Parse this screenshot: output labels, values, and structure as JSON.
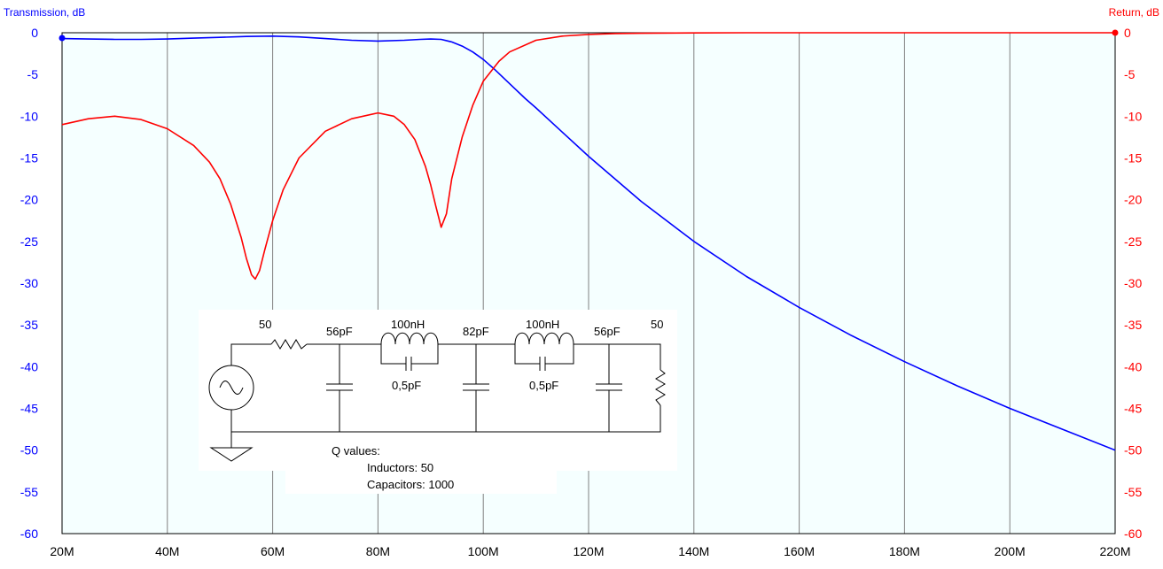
{
  "chart_data": {
    "type": "line",
    "left_axis_title": "Transmission, dB",
    "right_axis_title": "Return, dB",
    "xlim": [
      20,
      220
    ],
    "ylim": [
      -60,
      0
    ],
    "x_tick_values": [
      20,
      40,
      60,
      80,
      100,
      120,
      140,
      160,
      180,
      200,
      220
    ],
    "x_tick_labels": [
      "20M",
      "40M",
      "60M",
      "80M",
      "100M",
      "120M",
      "140M",
      "160M",
      "180M",
      "200M",
      "220M"
    ],
    "y_tick_values": [
      0,
      -5,
      -10,
      -15,
      -20,
      -25,
      -30,
      -35,
      -40,
      -45,
      -50,
      -55,
      -60
    ],
    "y_tick_labels": [
      "0",
      "-5",
      "-10",
      "-15",
      "-20",
      "-25",
      "-30",
      "-35",
      "-40",
      "-45",
      "-50",
      "-55",
      "-60"
    ],
    "grid": true,
    "series": [
      {
        "axis": "left",
        "color": "#0000ff",
        "x": [
          20,
          25,
          30,
          35,
          40,
          45,
          50,
          55,
          60,
          65,
          70,
          75,
          80,
          85,
          88,
          90,
          92,
          94,
          96,
          98,
          100,
          102,
          104,
          106,
          108,
          110,
          115,
          120,
          130,
          140,
          150,
          160,
          170,
          180,
          190,
          200,
          210,
          220
        ],
        "y": [
          -0.7,
          -0.75,
          -0.8,
          -0.8,
          -0.75,
          -0.65,
          -0.55,
          -0.45,
          -0.4,
          -0.5,
          -0.7,
          -0.9,
          -1.0,
          -0.9,
          -0.8,
          -0.75,
          -0.8,
          -1.1,
          -1.6,
          -2.3,
          -3.2,
          -4.3,
          -5.5,
          -6.7,
          -7.9,
          -9.0,
          -11.9,
          -14.8,
          -20.2,
          -25.0,
          -29.2,
          -32.9,
          -36.3,
          -39.4,
          -42.3,
          -45.0,
          -47.5,
          -50.0
        ]
      },
      {
        "axis": "right",
        "color": "#ff0000",
        "x": [
          20,
          25,
          30,
          35,
          40,
          45,
          48,
          50,
          52,
          54,
          55,
          56,
          56.7,
          57.5,
          58.5,
          60,
          62,
          65,
          70,
          75,
          80,
          83,
          85,
          87,
          89,
          90,
          91,
          92,
          93,
          94,
          96,
          98,
          100,
          103,
          105,
          110,
          115,
          120,
          125,
          130,
          140,
          150,
          220
        ],
        "y": [
          -11,
          -10.3,
          -10,
          -10.4,
          -11.5,
          -13.5,
          -15.5,
          -17.5,
          -20.5,
          -24.5,
          -27,
          -29,
          -29.5,
          -28.5,
          -26,
          -22.5,
          -18.8,
          -15,
          -11.8,
          -10.3,
          -9.6,
          -10,
          -11,
          -12.8,
          -16,
          -18.2,
          -20.8,
          -23.3,
          -21.7,
          -17.5,
          -12.5,
          -8.7,
          -5.8,
          -3.4,
          -2.3,
          -0.9,
          -0.4,
          -0.2,
          -0.1,
          -0.06,
          -0.02,
          0,
          0
        ]
      }
    ]
  },
  "schematic": {
    "source_resistor": "50",
    "cap1": "56pF",
    "inductor1": "100nH",
    "cap_parallel1": "0,5pF",
    "cap2": "82pF",
    "inductor2": "100nH",
    "cap_parallel2": "0,5pF",
    "cap3": "56pF",
    "load_resistor": "50",
    "q_title": "Q values:",
    "q_inductors": "Inductors:  50",
    "q_capacitors": "Capacitors:  1000"
  }
}
